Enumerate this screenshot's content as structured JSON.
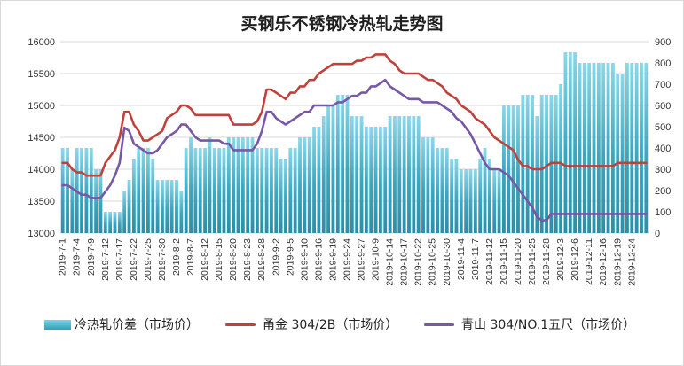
{
  "chart_data": {
    "type": "bar+line",
    "title": "买钢乐不锈钢冷热轧走势图",
    "categories": [
      "2019-7-1",
      "2019-7-2",
      "2019-7-3",
      "2019-7-4",
      "2019-7-5",
      "2019-7-8",
      "2019-7-9",
      "2019-7-10",
      "2019-7-11",
      "2019-7-12",
      "2019-7-15",
      "2019-7-16",
      "2019-7-17",
      "2019-7-18",
      "2019-7-19",
      "2019-7-22",
      "2019-7-23",
      "2019-7-24",
      "2019-7-25",
      "2019-7-26",
      "2019-7-29",
      "2019-7-30",
      "2019-7-31",
      "2019-8-1",
      "2019-8-2",
      "2019-8-5",
      "2019-8-6",
      "2019-8-7",
      "2019-8-8",
      "2019-8-9",
      "2019-8-12",
      "2019-8-13",
      "2019-8-14",
      "2019-8-15",
      "2019-8-16",
      "2019-8-19",
      "2019-8-20",
      "2019-8-21",
      "2019-8-22",
      "2019-8-23",
      "2019-8-26",
      "2019-8-27",
      "2019-8-28",
      "2019-8-29",
      "2019-8-30",
      "2019-9-2",
      "2019-9-3",
      "2019-9-4",
      "2019-9-5",
      "2019-9-6",
      "2019-9-9",
      "2019-9-10",
      "2019-9-11",
      "2019-9-12",
      "2019-9-16",
      "2019-9-17",
      "2019-9-18",
      "2019-9-19",
      "2019-9-20",
      "2019-9-23",
      "2019-9-24",
      "2019-9-25",
      "2019-9-26",
      "2019-9-27",
      "2019-9-30",
      "2019-10-8",
      "2019-10-9",
      "2019-10-10",
      "2019-10-11",
      "2019-10-14",
      "2019-10-15",
      "2019-10-16",
      "2019-10-17",
      "2019-10-18",
      "2019-10-21",
      "2019-10-22",
      "2019-10-23",
      "2019-10-24",
      "2019-10-25",
      "2019-10-28",
      "2019-10-29",
      "2019-10-30",
      "2019-10-31",
      "2019-11-1",
      "2019-11-4",
      "2019-11-5",
      "2019-11-6",
      "2019-11-7",
      "2019-11-8",
      "2019-11-11",
      "2019-11-12",
      "2019-11-13",
      "2019-11-14",
      "2019-11-15",
      "2019-11-18",
      "2019-11-19",
      "2019-11-20",
      "2019-11-21",
      "2019-11-22",
      "2019-11-25",
      "2019-11-26",
      "2019-11-27",
      "2019-11-28",
      "2019-11-29",
      "2019-12-2",
      "2019-12-3",
      "2019-12-4",
      "2019-12-5",
      "2019-12-6",
      "2019-12-9",
      "2019-12-10",
      "2019-12-11",
      "2019-12-12",
      "2019-12-13",
      "2019-12-16",
      "2019-12-17",
      "2019-12-18",
      "2019-12-19",
      "2019-12-20",
      "2019-12-23",
      "2019-12-24",
      "2019-12-25",
      "2019-12-26",
      "2019-12-27"
    ],
    "x_tick_labels": [
      "2019-7-1",
      "2019-7-4",
      "2019-7-9",
      "2019-7-12",
      "2019-7-17",
      "2019-7-22",
      "2019-7-25",
      "2019-7-30",
      "2019-8-2",
      "2019-8-7",
      "2019-8-12",
      "2019-8-15",
      "2019-8-20",
      "2019-8-23",
      "2019-8-28",
      "2019-9-2",
      "2019-9-5",
      "2019-9-10",
      "2019-9-16",
      "2019-9-19",
      "2019-9-24",
      "2019-9-27",
      "2019-10-9",
      "2019-10-14",
      "2019-10-17",
      "2019-10-22",
      "2019-10-25",
      "2019-10-30",
      "2019-11-4",
      "2019-11-7",
      "2019-11-12",
      "2019-11-15",
      "2019-11-20",
      "2019-11-25",
      "2019-11-28",
      "2019-12-3",
      "2019-12-6",
      "2019-12-11",
      "2019-12-16",
      "2019-12-19",
      "2019-12-24"
    ],
    "y_left": {
      "min": 13000,
      "max": 16000,
      "step": 500,
      "ticks": [
        "13000",
        "13500",
        "14000",
        "14500",
        "15000",
        "15500",
        "16000"
      ]
    },
    "y_right": {
      "min": 0,
      "max": 900,
      "step": 100,
      "ticks": [
        "0",
        "100",
        "200",
        "300",
        "400",
        "500",
        "600",
        "700",
        "800",
        "900"
      ]
    },
    "series": [
      {
        "name": "冷热轧价差（市场价）",
        "type": "bar",
        "axis": "right",
        "color": "#3aa6c0",
        "values": [
          400,
          400,
          300,
          400,
          400,
          400,
          400,
          300,
          300,
          100,
          100,
          100,
          100,
          200,
          250,
          350,
          400,
          400,
          400,
          350,
          250,
          250,
          250,
          250,
          250,
          200,
          400,
          450,
          400,
          400,
          400,
          450,
          400,
          400,
          400,
          450,
          450,
          450,
          450,
          450,
          450,
          400,
          400,
          400,
          400,
          400,
          350,
          350,
          400,
          400,
          450,
          450,
          450,
          500,
          500,
          550,
          600,
          600,
          650,
          650,
          650,
          550,
          550,
          550,
          500,
          500,
          500,
          500,
          500,
          550,
          550,
          550,
          550,
          550,
          550,
          550,
          450,
          450,
          450,
          400,
          400,
          400,
          350,
          350,
          300,
          300,
          300,
          300,
          350,
          400,
          350,
          300,
          300,
          600,
          600,
          600,
          600,
          650,
          650,
          650,
          550,
          650,
          650,
          650,
          650,
          700,
          850,
          850,
          850,
          800,
          800,
          800,
          800,
          800,
          800,
          800,
          800,
          750,
          750,
          800,
          800,
          800,
          800,
          800
        ]
      },
      {
        "name": "甬金 304/2B（市场价）",
        "type": "line",
        "axis": "left",
        "color": "#c0413b",
        "values": [
          14100,
          14100,
          14000,
          13950,
          13950,
          13900,
          13900,
          13900,
          13900,
          14100,
          14200,
          14300,
          14500,
          14900,
          14900,
          14700,
          14600,
          14450,
          14450,
          14500,
          14550,
          14600,
          14800,
          14850,
          14900,
          15000,
          15000,
          14950,
          14850,
          14850,
          14850,
          14850,
          14850,
          14850,
          14850,
          14850,
          14700,
          14700,
          14700,
          14700,
          14700,
          14750,
          14900,
          15250,
          15250,
          15200,
          15150,
          15100,
          15200,
          15200,
          15300,
          15300,
          15400,
          15400,
          15500,
          15550,
          15600,
          15650,
          15650,
          15650,
          15650,
          15650,
          15700,
          15700,
          15750,
          15750,
          15800,
          15800,
          15800,
          15700,
          15650,
          15550,
          15500,
          15500,
          15500,
          15500,
          15450,
          15400,
          15400,
          15350,
          15300,
          15200,
          15150,
          15100,
          15000,
          14950,
          14900,
          14800,
          14750,
          14700,
          14600,
          14500,
          14450,
          14400,
          14350,
          14300,
          14150,
          14050,
          14050,
          14000,
          14000,
          14000,
          14050,
          14100,
          14100,
          14100,
          14050,
          14050,
          14050,
          14050,
          14050,
          14050,
          14050,
          14050,
          14050,
          14050,
          14050,
          14100,
          14100,
          14100,
          14100,
          14100,
          14100,
          14100
        ]
      },
      {
        "name": "青山 304/NO.1五尺（市场价）",
        "type": "line",
        "axis": "left",
        "color": "#7757a6",
        "values": [
          13750,
          13750,
          13700,
          13650,
          13600,
          13600,
          13550,
          13550,
          13550,
          13650,
          13750,
          13900,
          14100,
          14650,
          14600,
          14400,
          14350,
          14300,
          14250,
          14250,
          14300,
          14400,
          14500,
          14550,
          14600,
          14700,
          14700,
          14600,
          14500,
          14450,
          14450,
          14450,
          14450,
          14450,
          14400,
          14400,
          14300,
          14300,
          14300,
          14300,
          14300,
          14400,
          14600,
          14900,
          14900,
          14800,
          14750,
          14700,
          14750,
          14800,
          14850,
          14900,
          14900,
          15000,
          15000,
          15000,
          15000,
          15000,
          15050,
          15050,
          15100,
          15150,
          15150,
          15200,
          15200,
          15300,
          15300,
          15350,
          15400,
          15300,
          15250,
          15200,
          15150,
          15100,
          15100,
          15100,
          15050,
          15050,
          15050,
          15050,
          15000,
          14950,
          14900,
          14800,
          14750,
          14650,
          14550,
          14400,
          14250,
          14100,
          14000,
          14000,
          14000,
          13950,
          13900,
          13800,
          13700,
          13600,
          13500,
          13400,
          13250,
          13200,
          13200,
          13300,
          13300,
          13300,
          13300,
          13300,
          13300,
          13300,
          13300,
          13300,
          13300,
          13300,
          13300,
          13300,
          13300,
          13300,
          13300,
          13300,
          13300,
          13300,
          13300,
          13300
        ]
      }
    ]
  }
}
